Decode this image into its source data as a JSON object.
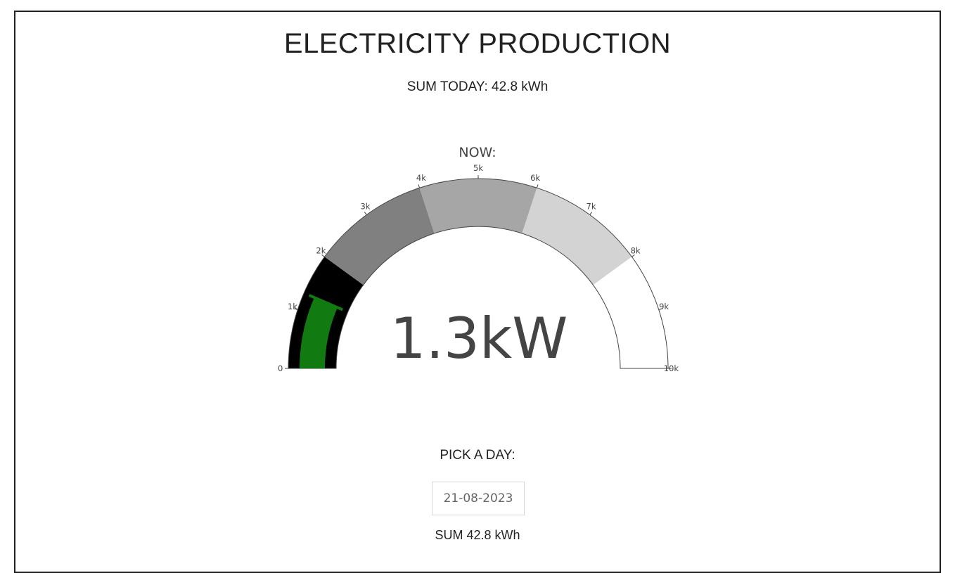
{
  "page": {
    "title": "ELECTRICITY PRODUCTION",
    "sum_today": "SUM TODAY: 42.8 kWh"
  },
  "gauge": {
    "label": "NOW:",
    "display_value": "1.3kW",
    "value": 1300,
    "min": 0,
    "max": 10000,
    "tick_labels": [
      "0",
      "1k",
      "2k",
      "3k",
      "4k",
      "5k",
      "6k",
      "7k",
      "8k",
      "9k",
      "10k"
    ],
    "steps": [
      {
        "from": 0,
        "to": 2000,
        "color": "#000000"
      },
      {
        "from": 2000,
        "to": 4000,
        "color": "#808080"
      },
      {
        "from": 4000,
        "to": 6000,
        "color": "#a6a6a6"
      },
      {
        "from": 6000,
        "to": 8000,
        "color": "#d3d3d3"
      },
      {
        "from": 8000,
        "to": 10000,
        "color": "#ffffff"
      }
    ],
    "bar_color": "#117a11"
  },
  "picker": {
    "label": "PICK A DAY:",
    "date_value": "21-08-2023"
  },
  "sum_day": "SUM 42.8 kWh",
  "chart_data": {
    "type": "gauge",
    "title": "NOW:",
    "value": 1300,
    "value_label": "1.3kW",
    "range": [
      0,
      10000
    ],
    "ticks": [
      0,
      1000,
      2000,
      3000,
      4000,
      5000,
      6000,
      7000,
      8000,
      9000,
      10000
    ],
    "tick_labels": [
      "0",
      "1k",
      "2k",
      "3k",
      "4k",
      "5k",
      "6k",
      "7k",
      "8k",
      "9k",
      "10k"
    ],
    "steps": [
      {
        "range": [
          0,
          2000
        ],
        "color": "#000000"
      },
      {
        "range": [
          2000,
          4000
        ],
        "color": "#808080"
      },
      {
        "range": [
          4000,
          6000
        ],
        "color": "#a6a6a6"
      },
      {
        "range": [
          6000,
          8000
        ],
        "color": "#d3d3d3"
      },
      {
        "range": [
          8000,
          10000
        ],
        "color": "#ffffff"
      }
    ],
    "bar_color": "#117a11"
  }
}
